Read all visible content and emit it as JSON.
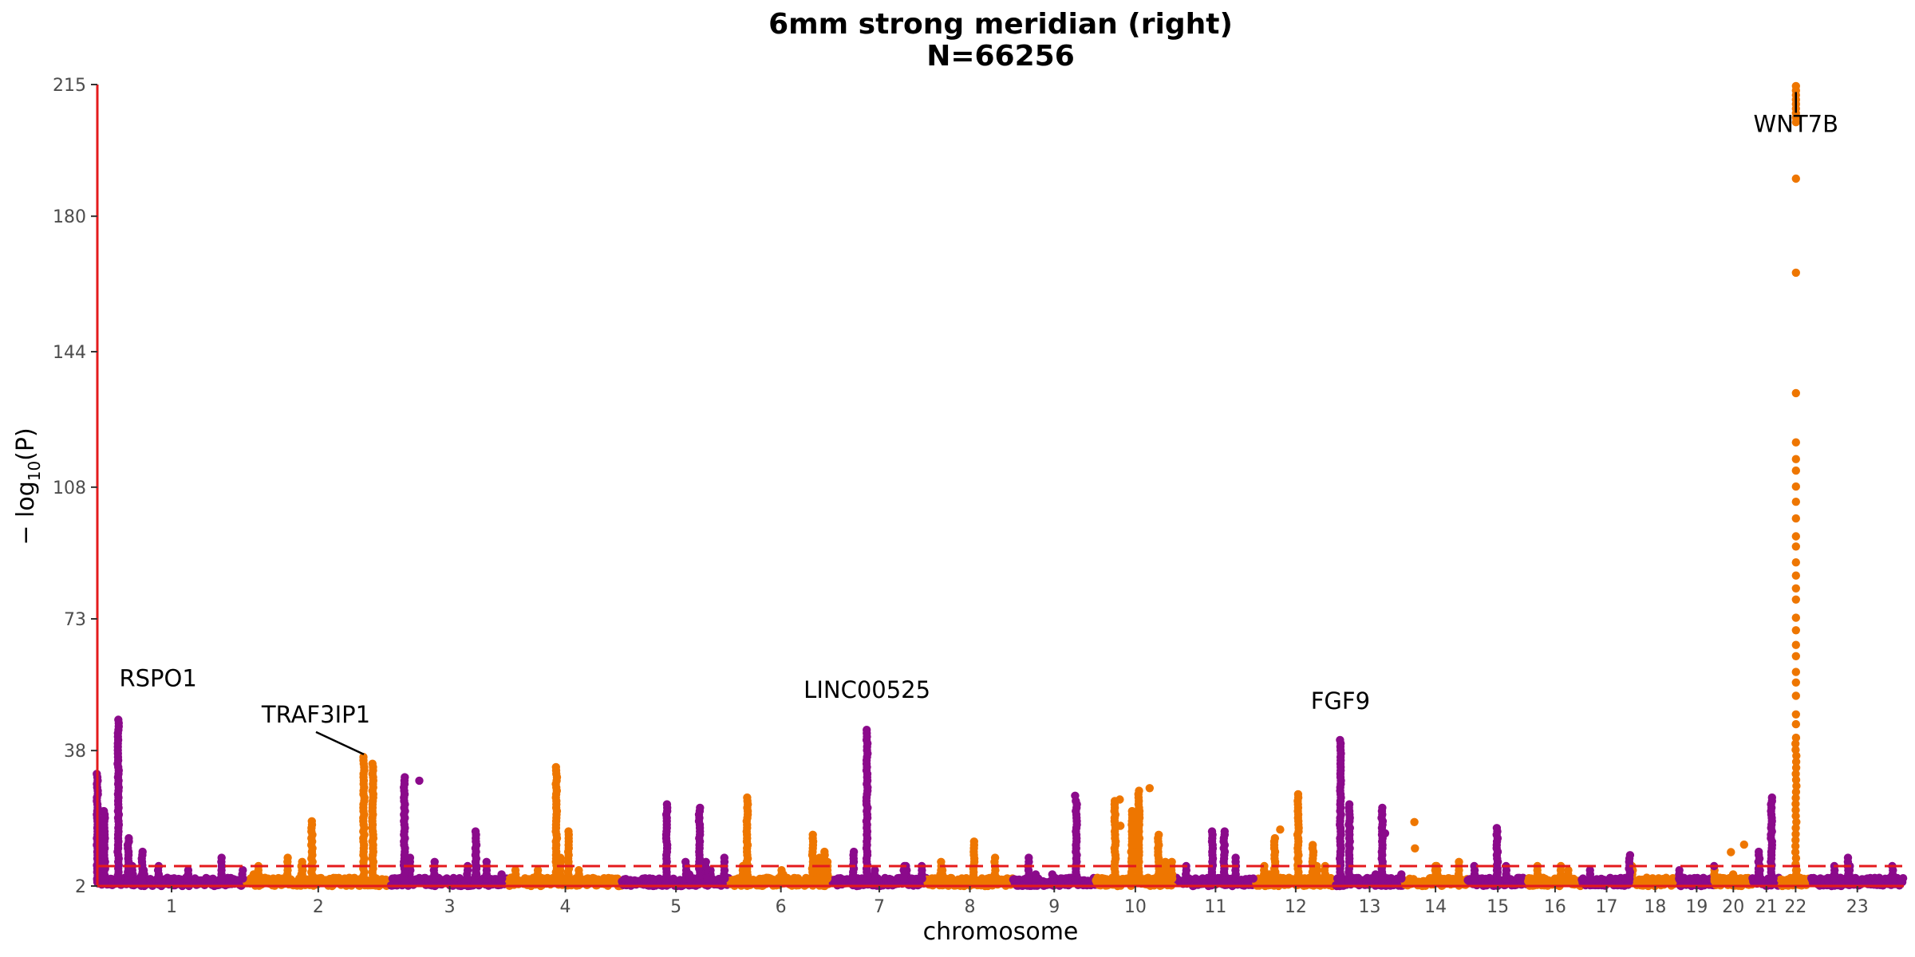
{
  "chart_data": {
    "type": "scatter",
    "subtype": "manhattan",
    "title": "6mm strong meridian (right)",
    "subtitle": "N=66256",
    "xlabel": "chromosome",
    "ylabel": "−log10(P)",
    "ylabel_parts": {
      "prefix": "− log",
      "sub": "10",
      "suffix": "(P)"
    },
    "ylim": [
      2,
      215
    ],
    "yticks": [
      "2",
      "38",
      "73",
      "108",
      "144",
      "180",
      "215"
    ],
    "threshold": 7.3,
    "threshold_color": "#e41a1c",
    "colors": {
      "odd": "#8b0a8b",
      "even": "#ee7600",
      "axis": "#e41a1c",
      "label": "#000000"
    },
    "chromosomes": [
      {
        "name": "1",
        "start": 0,
        "end": 249
      },
      {
        "name": "2",
        "start": 249,
        "end": 492
      },
      {
        "name": "3",
        "start": 492,
        "end": 690
      },
      {
        "name": "4",
        "start": 690,
        "end": 880
      },
      {
        "name": "5",
        "start": 880,
        "end": 1061
      },
      {
        "name": "6",
        "start": 1061,
        "end": 1232
      },
      {
        "name": "7",
        "start": 1232,
        "end": 1391
      },
      {
        "name": "8",
        "start": 1391,
        "end": 1536
      },
      {
        "name": "9",
        "start": 1536,
        "end": 1674
      },
      {
        "name": "10",
        "start": 1674,
        "end": 1808
      },
      {
        "name": "11",
        "start": 1808,
        "end": 1943
      },
      {
        "name": "12",
        "start": 1943,
        "end": 2077
      },
      {
        "name": "13",
        "start": 2077,
        "end": 2191
      },
      {
        "name": "14",
        "start": 2191,
        "end": 2298
      },
      {
        "name": "15",
        "start": 2298,
        "end": 2400
      },
      {
        "name": "16",
        "start": 2400,
        "end": 2490
      },
      {
        "name": "17",
        "start": 2490,
        "end": 2573
      },
      {
        "name": "18",
        "start": 2573,
        "end": 2653
      },
      {
        "name": "19",
        "start": 2653,
        "end": 2712
      },
      {
        "name": "20",
        "start": 2712,
        "end": 2776
      },
      {
        "name": "21",
        "start": 2776,
        "end": 2823
      },
      {
        "name": "22",
        "start": 2823,
        "end": 2874
      },
      {
        "name": "23",
        "start": 2874,
        "end": 3030
      }
    ],
    "peaks": [
      {
        "pos": 0,
        "max": 32
      },
      {
        "pos": 12,
        "max": 22
      },
      {
        "pos": 35,
        "max": 47
      },
      {
        "pos": 52,
        "max": 15
      },
      {
        "pos": 75,
        "max": 12
      },
      {
        "pos": 360,
        "max": 20
      },
      {
        "pos": 447,
        "max": 37
      },
      {
        "pos": 462,
        "max": 35
      },
      {
        "pos": 515,
        "max": 31
      },
      {
        "pos": 635,
        "max": 17
      },
      {
        "pos": 770,
        "max": 34
      },
      {
        "pos": 790,
        "max": 17
      },
      {
        "pos": 955,
        "max": 24
      },
      {
        "pos": 1010,
        "max": 23
      },
      {
        "pos": 1090,
        "max": 26
      },
      {
        "pos": 1200,
        "max": 16
      },
      {
        "pos": 1220,
        "max": 12
      },
      {
        "pos": 1268,
        "max": 12
      },
      {
        "pos": 1291,
        "max": 44
      },
      {
        "pos": 1470,
        "max": 14
      },
      {
        "pos": 1642,
        "max": 25
      },
      {
        "pos": 1707,
        "max": 25
      },
      {
        "pos": 1735,
        "max": 22
      },
      {
        "pos": 1747,
        "max": 28
      },
      {
        "pos": 1780,
        "max": 16
      },
      {
        "pos": 1870,
        "max": 17
      },
      {
        "pos": 1890,
        "max": 17
      },
      {
        "pos": 1975,
        "max": 15
      },
      {
        "pos": 2014,
        "max": 27
      },
      {
        "pos": 2039,
        "max": 13
      },
      {
        "pos": 2085,
        "max": 41
      },
      {
        "pos": 2100,
        "max": 24
      },
      {
        "pos": 2155,
        "max": 23
      },
      {
        "pos": 2348,
        "max": 18
      },
      {
        "pos": 2570,
        "max": 11
      },
      {
        "pos": 2787,
        "max": 12
      },
      {
        "pos": 2808,
        "max": 26
      },
      {
        "pos": 2849,
        "max": 215
      }
    ],
    "outliers": [
      {
        "pos": 1640,
        "y": 26
      },
      {
        "pos": 1715,
        "y": 25
      },
      {
        "pos": 1716,
        "y": 18
      },
      {
        "pos": 1765,
        "y": 28
      },
      {
        "pos": 1984,
        "y": 17
      },
      {
        "pos": 2209,
        "y": 19
      },
      {
        "pos": 2160,
        "y": 16
      },
      {
        "pos": 2210,
        "y": 12
      },
      {
        "pos": 2762,
        "y": 13
      },
      {
        "pos": 2740,
        "y": 11
      },
      {
        "pos": 540,
        "y": 30
      },
      {
        "pos": 2849,
        "y": 190
      },
      {
        "pos": 2849,
        "y": 165
      },
      {
        "pos": 2849,
        "y": 133
      }
    ],
    "annotations": [
      {
        "text": "RSPO1",
        "pos": 35,
        "y": 47,
        "label_dx": 50,
        "label_dy": -38,
        "leader": false
      },
      {
        "text": "TRAF3IP1",
        "pos": 447,
        "y": 37,
        "label_dx": -60,
        "label_dy": -40,
        "leader": true
      },
      {
        "text": "LINC00525",
        "pos": 1291,
        "y": 44,
        "label_dx": 0,
        "label_dy": -38,
        "leader": false
      },
      {
        "text": "FGF9",
        "pos": 2085,
        "y": 41,
        "label_dx": 0,
        "label_dy": -38,
        "leader": false
      },
      {
        "text": "WNT7B",
        "pos": 2849,
        "y": 213,
        "label_dx": 0,
        "label_dy": 50,
        "leader": true
      }
    ]
  }
}
